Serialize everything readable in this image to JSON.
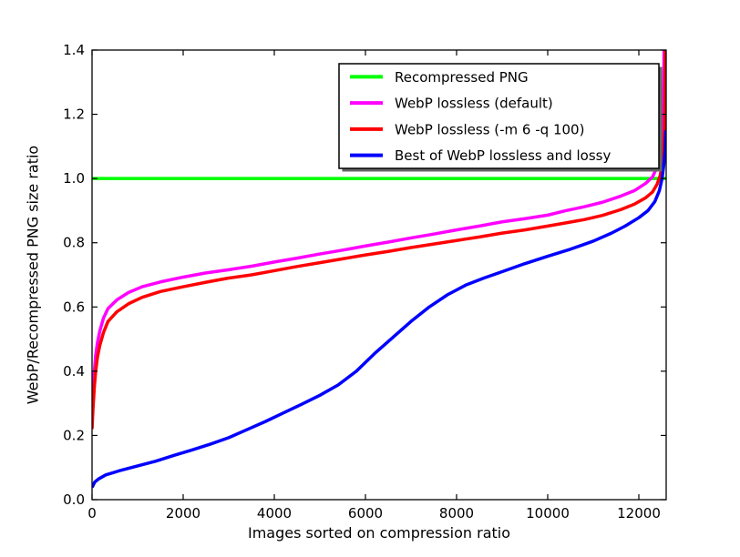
{
  "figure": {
    "background": "#ffffff",
    "axis_color": "#000000"
  },
  "chart_data": {
    "type": "line",
    "title": "",
    "xlabel": "Images sorted on compression ratio",
    "ylabel": "WebP/Recompressed PNG size ratio",
    "xlim": [
      0,
      12600
    ],
    "ylim": [
      0.0,
      1.4
    ],
    "xticks": [
      0,
      2000,
      4000,
      6000,
      8000,
      10000,
      12000
    ],
    "yticks": [
      0.0,
      0.2,
      0.4,
      0.6,
      0.8,
      1.0,
      1.2,
      1.4
    ],
    "grid": false,
    "legend": {
      "position": "upper right",
      "shadow": true,
      "background": "#ffffff",
      "border_color": "#000000",
      "shadow_color": "#666666"
    },
    "series": [
      {
        "name": "Recompressed PNG",
        "color": "#00ff00",
        "points": [
          [
            0,
            1.0
          ],
          [
            12600,
            1.0
          ]
        ]
      },
      {
        "name": "WebP lossless (default)",
        "color": "#ff00ff",
        "points": [
          [
            0,
            0.27
          ],
          [
            20,
            0.33
          ],
          [
            50,
            0.4
          ],
          [
            80,
            0.45
          ],
          [
            120,
            0.49
          ],
          [
            170,
            0.525
          ],
          [
            250,
            0.565
          ],
          [
            350,
            0.595
          ],
          [
            545,
            0.622
          ],
          [
            800,
            0.645
          ],
          [
            1100,
            0.663
          ],
          [
            1500,
            0.678
          ],
          [
            2000,
            0.693
          ],
          [
            2500,
            0.706
          ],
          [
            3000,
            0.716
          ],
          [
            3500,
            0.727
          ],
          [
            4000,
            0.74
          ],
          [
            4500,
            0.752
          ],
          [
            5000,
            0.765
          ],
          [
            5500,
            0.777
          ],
          [
            6000,
            0.79
          ],
          [
            6500,
            0.802
          ],
          [
            7000,
            0.815
          ],
          [
            7500,
            0.827
          ],
          [
            8000,
            0.84
          ],
          [
            8500,
            0.852
          ],
          [
            9000,
            0.865
          ],
          [
            9500,
            0.875
          ],
          [
            10000,
            0.886
          ],
          [
            10400,
            0.9
          ],
          [
            10800,
            0.912
          ],
          [
            11200,
            0.926
          ],
          [
            11600,
            0.945
          ],
          [
            11900,
            0.962
          ],
          [
            12150,
            0.985
          ],
          [
            12300,
            1.005
          ],
          [
            12400,
            1.035
          ],
          [
            12470,
            1.08
          ],
          [
            12520,
            1.16
          ],
          [
            12545,
            1.28
          ],
          [
            12555,
            1.42
          ]
        ]
      },
      {
        "name": "WebP lossless (-m 6 -q 100)",
        "color": "#ff0000",
        "points": [
          [
            0,
            0.22
          ],
          [
            20,
            0.28
          ],
          [
            50,
            0.35
          ],
          [
            80,
            0.4
          ],
          [
            120,
            0.445
          ],
          [
            170,
            0.48
          ],
          [
            250,
            0.52
          ],
          [
            350,
            0.555
          ],
          [
            545,
            0.585
          ],
          [
            800,
            0.61
          ],
          [
            1100,
            0.63
          ],
          [
            1500,
            0.648
          ],
          [
            2000,
            0.663
          ],
          [
            2500,
            0.677
          ],
          [
            3000,
            0.69
          ],
          [
            3500,
            0.7
          ],
          [
            4000,
            0.713
          ],
          [
            4500,
            0.726
          ],
          [
            5000,
            0.738
          ],
          [
            5500,
            0.75
          ],
          [
            6000,
            0.762
          ],
          [
            6500,
            0.773
          ],
          [
            7000,
            0.785
          ],
          [
            7500,
            0.796
          ],
          [
            8000,
            0.807
          ],
          [
            8500,
            0.818
          ],
          [
            9000,
            0.83
          ],
          [
            9500,
            0.84
          ],
          [
            10000,
            0.852
          ],
          [
            10400,
            0.862
          ],
          [
            10800,
            0.872
          ],
          [
            11200,
            0.885
          ],
          [
            11600,
            0.903
          ],
          [
            11900,
            0.92
          ],
          [
            12150,
            0.94
          ],
          [
            12300,
            0.958
          ],
          [
            12400,
            0.982
          ],
          [
            12470,
            1.01
          ],
          [
            12530,
            1.06
          ],
          [
            12565,
            1.16
          ],
          [
            12578,
            1.3
          ],
          [
            12583,
            1.42
          ]
        ]
      },
      {
        "name": "Best of WebP lossless and lossy",
        "color": "#0000ff",
        "points": [
          [
            0,
            0.038
          ],
          [
            60,
            0.055
          ],
          [
            150,
            0.065
          ],
          [
            300,
            0.077
          ],
          [
            600,
            0.09
          ],
          [
            1000,
            0.105
          ],
          [
            1400,
            0.12
          ],
          [
            1800,
            0.138
          ],
          [
            2200,
            0.155
          ],
          [
            2600,
            0.173
          ],
          [
            3000,
            0.193
          ],
          [
            3400,
            0.218
          ],
          [
            3800,
            0.243
          ],
          [
            4200,
            0.27
          ],
          [
            4600,
            0.297
          ],
          [
            5000,
            0.325
          ],
          [
            5400,
            0.357
          ],
          [
            5800,
            0.4
          ],
          [
            6200,
            0.455
          ],
          [
            6600,
            0.505
          ],
          [
            7000,
            0.555
          ],
          [
            7400,
            0.6
          ],
          [
            7800,
            0.638
          ],
          [
            8200,
            0.668
          ],
          [
            8600,
            0.69
          ],
          [
            9000,
            0.71
          ],
          [
            9500,
            0.735
          ],
          [
            10000,
            0.758
          ],
          [
            10500,
            0.78
          ],
          [
            11000,
            0.805
          ],
          [
            11400,
            0.83
          ],
          [
            11700,
            0.852
          ],
          [
            12000,
            0.878
          ],
          [
            12200,
            0.9
          ],
          [
            12350,
            0.928
          ],
          [
            12450,
            0.962
          ],
          [
            12510,
            1.0
          ],
          [
            12550,
            1.045
          ],
          [
            12575,
            1.09
          ],
          [
            12590,
            1.15
          ]
        ]
      }
    ]
  }
}
